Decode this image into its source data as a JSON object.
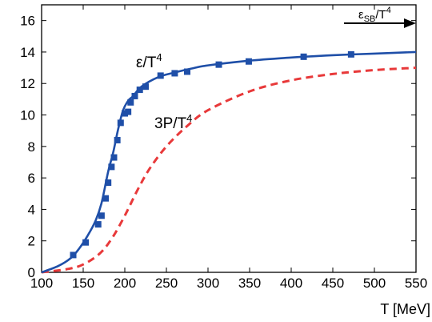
{
  "chart_data": {
    "type": "line",
    "xlabel": "T [MeV]",
    "ylabel": "",
    "xlim": [
      100,
      550
    ],
    "ylim": [
      0,
      17
    ],
    "xticks": [
      100,
      150,
      200,
      250,
      300,
      350,
      400,
      450,
      500,
      550
    ],
    "yticks": [
      0,
      2,
      4,
      6,
      8,
      10,
      12,
      14,
      16
    ],
    "grid": false,
    "series": [
      {
        "name": "ε/T⁴",
        "style": "solid",
        "color": "#1f4fa8",
        "markers": "square",
        "x": [
          100,
          120,
          135,
          145,
          155,
          165,
          172,
          180,
          186,
          192,
          198,
          204,
          210,
          220,
          240,
          260,
          280,
          300,
          350,
          400,
          450,
          500,
          550
        ],
        "y": [
          0,
          0.4,
          0.9,
          1.5,
          2.3,
          3.3,
          4.4,
          6.4,
          7.6,
          9.1,
          10.3,
          10.9,
          11.2,
          11.8,
          12.4,
          12.7,
          12.95,
          13.15,
          13.45,
          13.65,
          13.8,
          13.9,
          14.0
        ]
      },
      {
        "name": "3P/T⁴",
        "style": "dashed",
        "color": "#e8393a",
        "x": [
          100,
          130,
          150,
          170,
          185,
          200,
          215,
          230,
          250,
          275,
          300,
          350,
          400,
          450,
          500,
          550
        ],
        "y": [
          0,
          0.2,
          0.5,
          1.2,
          2.2,
          3.6,
          5.2,
          6.6,
          8.0,
          9.3,
          10.3,
          11.5,
          12.2,
          12.6,
          12.85,
          13.0
        ]
      }
    ],
    "markers_data": {
      "x": [
        138,
        153,
        168,
        172,
        177,
        180,
        184,
        187,
        191,
        195,
        200,
        204,
        207,
        212,
        218,
        225,
        243,
        260,
        275,
        313,
        349,
        415,
        472
      ],
      "y": [
        1.1,
        1.9,
        3.05,
        3.6,
        4.7,
        5.7,
        6.7,
        7.3,
        8.4,
        9.5,
        10.1,
        10.2,
        10.8,
        11.2,
        11.6,
        11.8,
        12.5,
        12.65,
        12.75,
        13.2,
        13.4,
        13.7,
        13.85
      ]
    },
    "annotations": [
      {
        "text": "ε/T⁴",
        "x": 216,
        "y": 13.3
      },
      {
        "text": "3P/T⁴",
        "x": 208,
        "y": 9.4
      },
      {
        "text": "ε_SB/T⁴",
        "arrow": "right",
        "x": 470,
        "y": 16.3
      }
    ]
  },
  "labels": {
    "eps": "ε/T",
    "eps_sup": "4",
    "threeP": "3P/T",
    "threeP_sup": "4",
    "sb_prefix": "ε",
    "sb_sub": "SB",
    "sb_mid": "/T",
    "sb_sup": "4",
    "xlabel": "T [MeV]"
  }
}
